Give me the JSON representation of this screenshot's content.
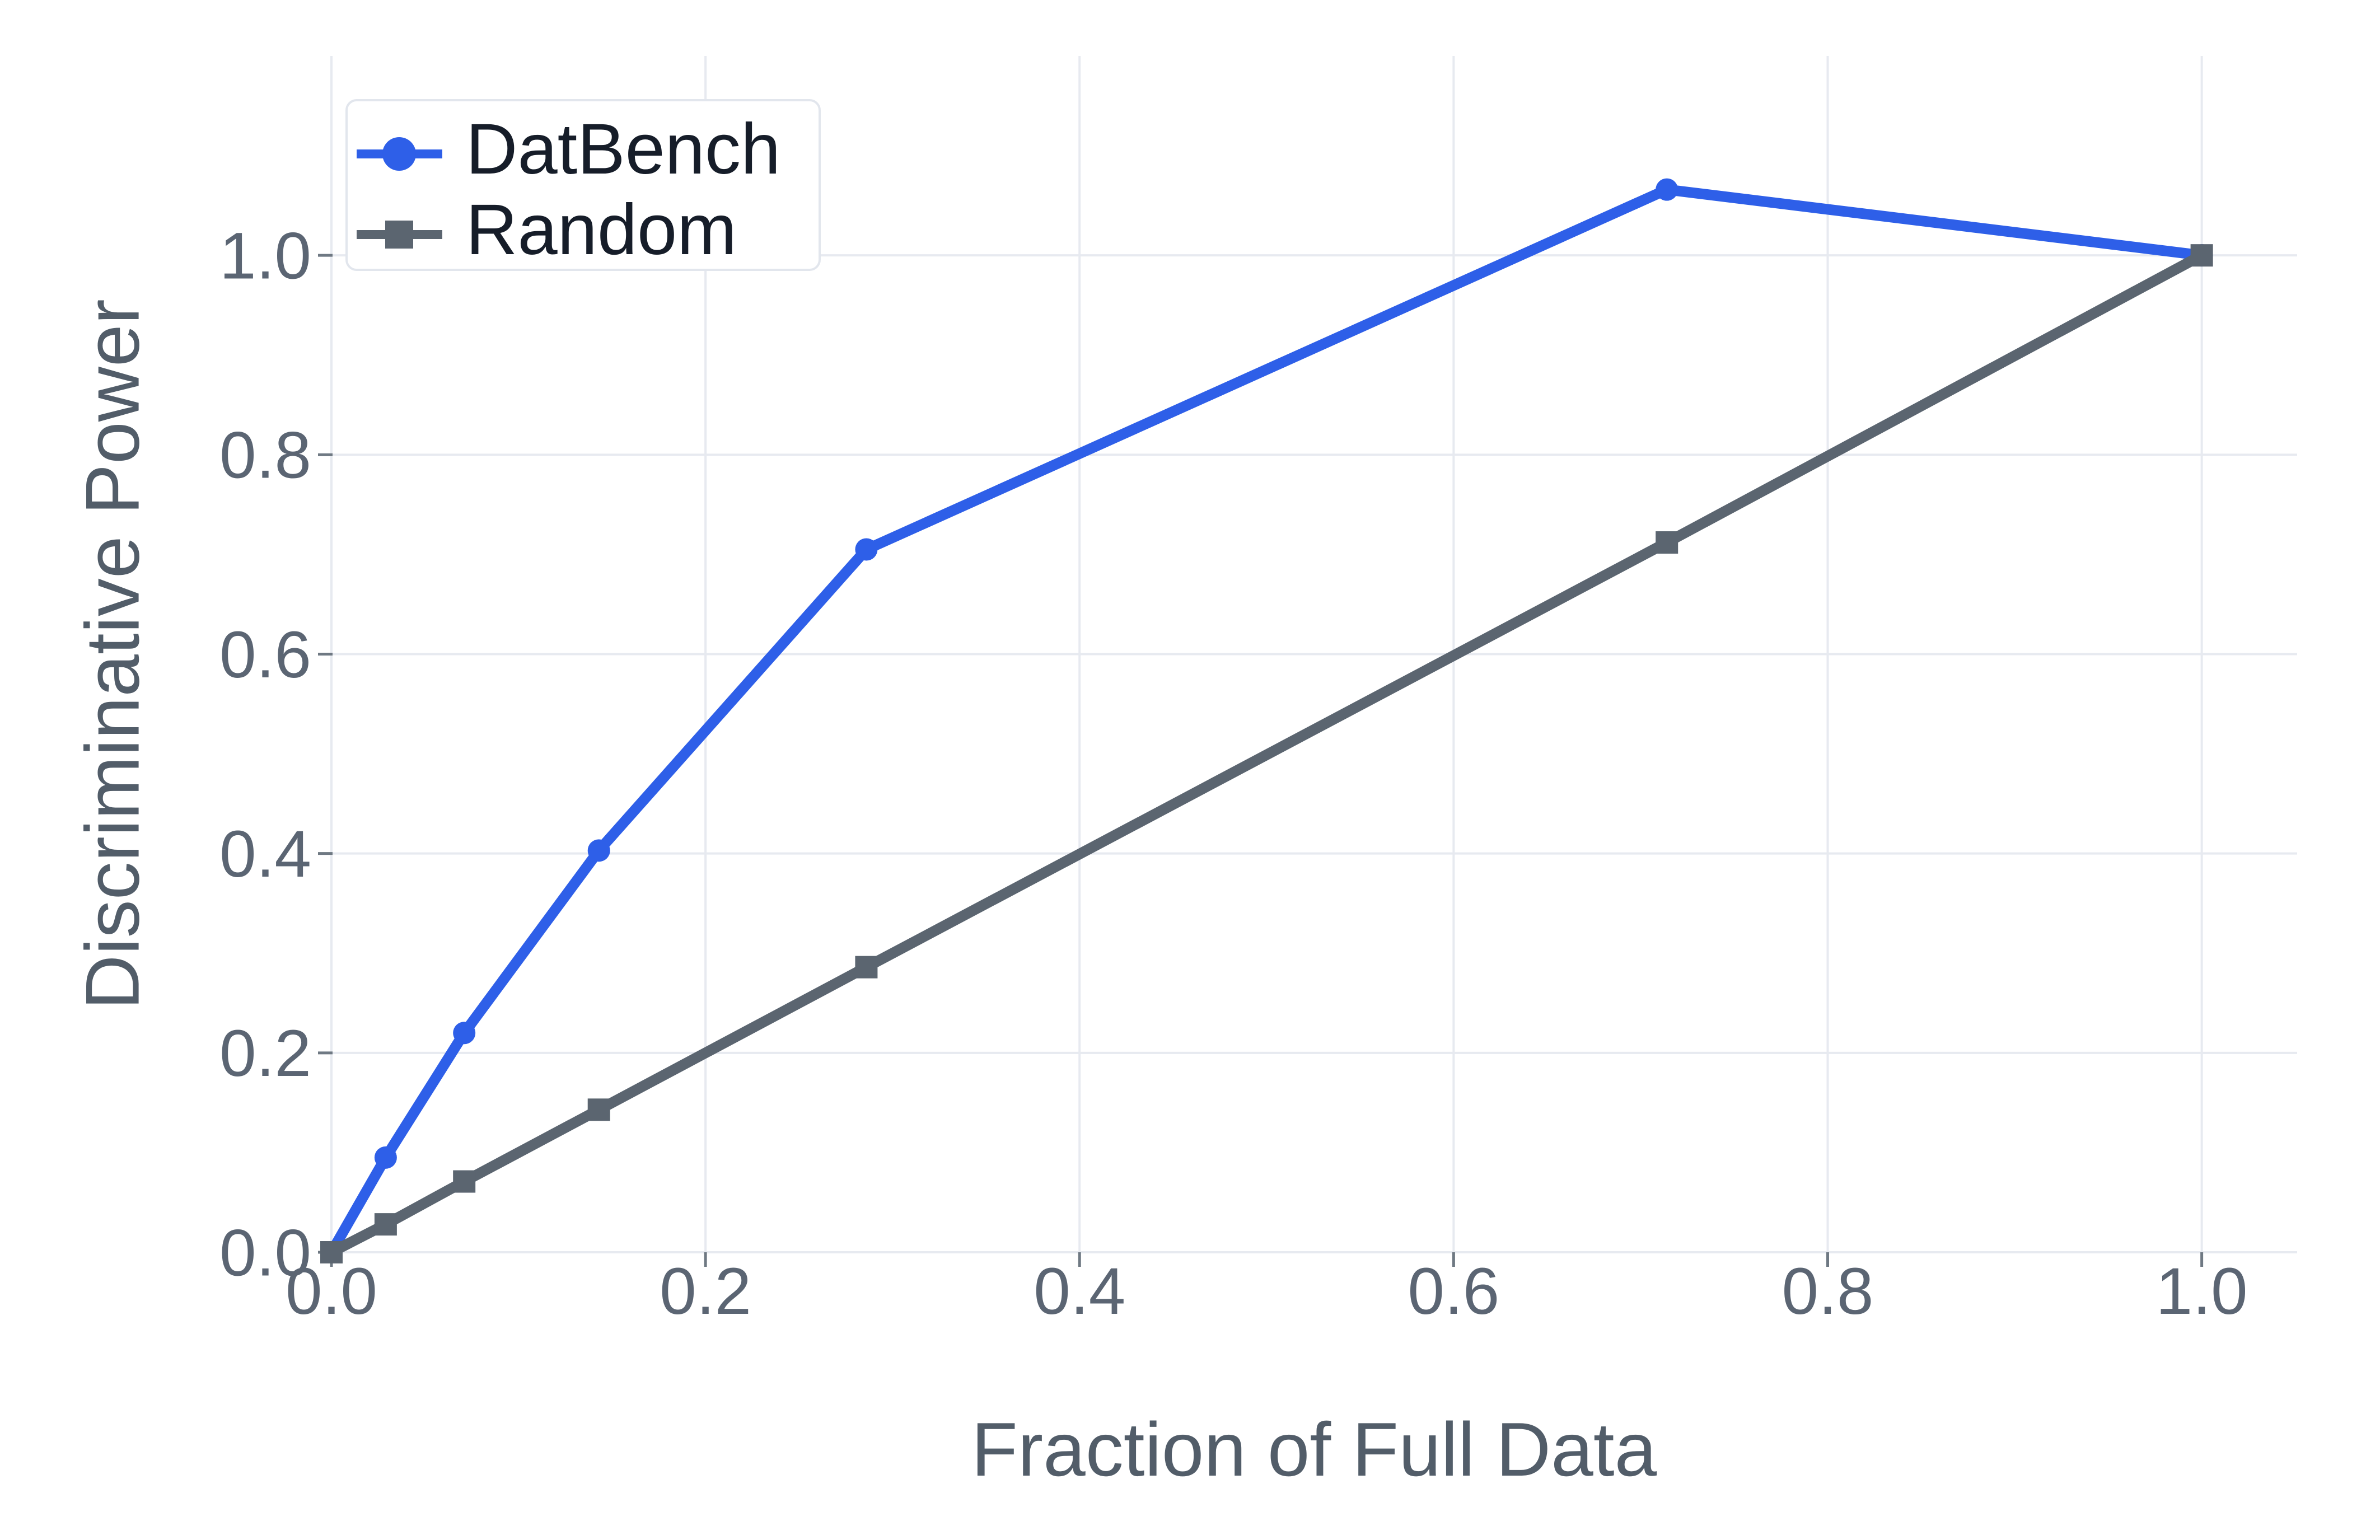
{
  "figure": {
    "background": "#ffffff"
  },
  "chart_data": {
    "type": "line",
    "title": "",
    "xlabel": "Fraction of Full Data",
    "ylabel": "Discriminative Power",
    "x": [
      0.0,
      0.029,
      0.071,
      0.143,
      0.286,
      0.714,
      1.0
    ],
    "series": [
      {
        "name": "DatBench",
        "color": "#2E5FE8",
        "marker": "circle",
        "values": [
          0.0,
          0.095,
          0.22,
          0.403,
          0.705,
          1.066,
          1.0
        ]
      },
      {
        "name": "Random",
        "color": "#5B6570",
        "marker": "square",
        "values": [
          0.0,
          0.028,
          0.071,
          0.143,
          0.286,
          0.712,
          1.0
        ]
      }
    ],
    "xticks": [
      0.0,
      0.2,
      0.4,
      0.6,
      0.8,
      1.0
    ],
    "yticks": [
      0.0,
      0.2,
      0.4,
      0.6,
      0.8,
      1.0
    ],
    "xtick_labels": [
      "0.0",
      "0.2",
      "0.4",
      "0.6",
      "0.8",
      "1.0"
    ],
    "ytick_labels": [
      "0.0",
      "0.2",
      "0.4",
      "0.6",
      "0.8",
      "1.0"
    ],
    "xlim": [
      0.0,
      1.051
    ],
    "ylim": [
      0.0,
      1.2
    ],
    "grid": true,
    "legend_position": "upper-left",
    "colors": {
      "grid": "#E7EAF0",
      "tick": "#6F7983",
      "tick_label": "#5B6573",
      "axis_label": "#525D69",
      "legend_text": "#161D29",
      "legend_border": "#E2E6ED",
      "legend_background": "#FFFFFF"
    }
  }
}
